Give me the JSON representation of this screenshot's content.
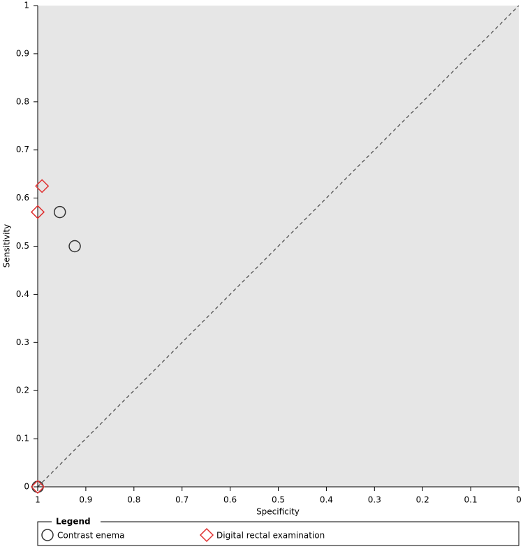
{
  "chart_data": {
    "type": "scatter",
    "x_label": "Specificity",
    "y_label": "Sensitivity",
    "xlim": [
      1,
      0
    ],
    "ylim": [
      0,
      1
    ],
    "xticks": [
      1,
      0.9,
      0.8,
      0.7,
      0.6,
      0.5,
      0.4,
      0.3,
      0.2,
      0.1,
      0
    ],
    "yticks": [
      0,
      0.1,
      0.2,
      0.3,
      0.4,
      0.5,
      0.6,
      0.7,
      0.8,
      0.9,
      1
    ],
    "legend_title": "Legend",
    "series": [
      {
        "name": "Contrast enema",
        "marker": "circle",
        "color": "#333333",
        "x": [
          0.954,
          0.923,
          1
        ],
        "values": [
          0.571,
          0.5,
          0
        ]
      },
      {
        "name": "Digital rectal examination",
        "marker": "diamond",
        "color": "#e03030",
        "x": [
          0.991,
          1,
          1
        ],
        "values": [
          0.625,
          0.571,
          0
        ]
      }
    ]
  }
}
